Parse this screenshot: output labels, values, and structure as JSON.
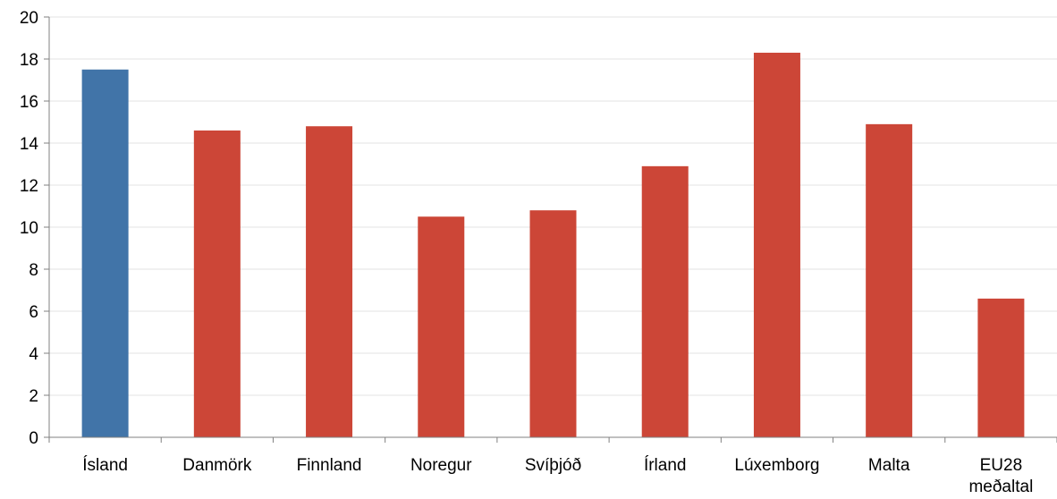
{
  "chart_data": {
    "type": "bar",
    "title": "",
    "xlabel": "",
    "ylabel": "",
    "ylim": [
      0,
      20
    ],
    "yticks": [
      "0",
      "2",
      "4",
      "6",
      "8",
      "10",
      "12",
      "14",
      "16",
      "18",
      "20"
    ],
    "grid": true,
    "categories": [
      [
        "Ísland"
      ],
      [
        "Danmörk"
      ],
      [
        "Finnland"
      ],
      [
        "Noregur"
      ],
      [
        "Svíþjóð"
      ],
      [
        "Írland"
      ],
      [
        "Lúxemborg"
      ],
      [
        "Malta"
      ],
      [
        "EU28",
        "meðaltal"
      ]
    ],
    "values": [
      17.5,
      14.6,
      14.8,
      10.5,
      10.8,
      12.9,
      18.3,
      14.9,
      6.6
    ],
    "colors": [
      "#4174a8",
      "#cc4637",
      "#cc4637",
      "#cc4637",
      "#cc4637",
      "#cc4637",
      "#cc4637",
      "#cc4637",
      "#cc4637"
    ]
  }
}
